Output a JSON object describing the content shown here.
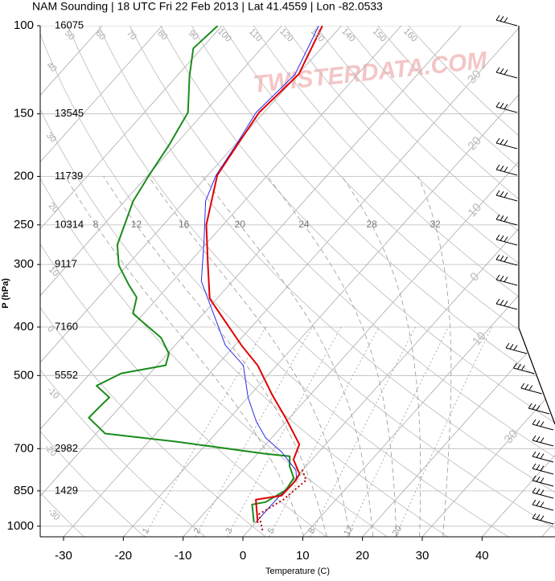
{
  "chart_data": {
    "type": "skewt",
    "title": "NAM Sounding | 18 UTC Fri 22 Feb 2013 | Lat 41.4559 | Lon -82.0533",
    "xlabel": "Temperature (C)",
    "ylabel": "P (hPa)",
    "watermark": "TWISTERDATA.COM",
    "xlim": [
      -33.9,
      52.2
    ],
    "xticks": [
      -30,
      -20,
      -10,
      0,
      10,
      20,
      30,
      40
    ],
    "ylim": [
      1050,
      100
    ],
    "ylog": true,
    "yticks": [
      100,
      150,
      200,
      250,
      300,
      400,
      500,
      700,
      850,
      1000
    ],
    "height_labels": [
      "16075",
      "13545",
      "11739",
      "10314",
      "9117",
      "7160",
      "5552",
      "2982",
      "1429",
      null
    ],
    "grid": true,
    "isotherms": [
      -100,
      -90,
      -80,
      -70,
      -60,
      -50,
      -40,
      -30,
      -20,
      -10,
      0,
      10,
      20,
      30,
      40,
      50
    ],
    "isotherm_labels": [
      {
        "value": -30,
        "label": "30"
      },
      {
        "value": -20,
        "label": "20"
      },
      {
        "value": -10,
        "label": "10"
      },
      {
        "value": 0,
        "label": "0"
      },
      {
        "value": 10,
        "label": "10"
      },
      {
        "value": 30,
        "label": "30"
      }
    ],
    "dry_adiabats": [
      -30,
      -20,
      -10,
      0,
      10,
      20,
      30,
      40,
      50,
      60,
      70,
      80,
      90,
      100,
      110,
      120,
      130,
      140,
      150,
      160
    ],
    "moist_adiabats": [
      8,
      12,
      16,
      20,
      24,
      28,
      32
    ],
    "mixing_ratios": [
      1,
      2,
      3,
      5,
      8,
      12,
      20
    ],
    "series": [
      {
        "color": "#1a8c1a",
        "width": 2,
        "pressure": [
          983,
          905,
          895,
          847,
          801,
          758,
          725,
          717,
          678,
          653,
          607,
          574,
          553,
          524,
          495,
          477,
          452,
          420,
          376,
          349,
          330,
          301,
          274,
          224,
          199,
          173,
          149,
          126,
          111,
          100
        ],
        "temperature": [
          -0.3,
          -3.3,
          -1.4,
          0.2,
          -0.3,
          -2.8,
          -4.2,
          -8.6,
          -25.2,
          -38.5,
          -43.6,
          -43.4,
          -43.2,
          -47.1,
          -44.8,
          -38.6,
          -39.8,
          -43.5,
          -51.8,
          -53.6,
          -56.7,
          -61.4,
          -64.7,
          -68.6,
          -69.8,
          -71.0,
          -72.7,
          -77.9,
          -81.4,
          -80.7
        ]
      },
      {
        "color": "#2a2ae8",
        "width": 1,
        "pressure": [
          983,
          879,
          809,
          773,
          711,
          666,
          618,
          553,
          477,
          435,
          324,
          269,
          224,
          199,
          173,
          149,
          125,
          100
        ],
        "temperature": [
          0.0,
          0.0,
          0.5,
          -1.1,
          -6.2,
          -11.0,
          -15.0,
          -20.0,
          -25.6,
          -31.6,
          -45.2,
          -50.8,
          -56.5,
          -58.6,
          -59.8,
          -61.3,
          -60.5,
          -63.8
        ]
      },
      {
        "color": "#e00000",
        "width": 2,
        "pressure": [
          985,
          885,
          869,
          816,
          787,
          736,
          686,
          607,
          547,
          477,
          435,
          351,
          301,
          250,
          199,
          173,
          149,
          125,
          100
        ],
        "temperature": [
          0.4,
          -3.4,
          0.3,
          0.4,
          0.1,
          -3.1,
          -4.4,
          -10.7,
          -16.3,
          -23.2,
          -28.9,
          -41.2,
          -46.5,
          -52.8,
          -58.4,
          -59.6,
          -60.8,
          -59.9,
          -63.2
        ]
      },
      {
        "color": "#b00000",
        "width": 2,
        "dash": "dotted",
        "pressure": [
          1019,
          946,
          885,
          809,
          765
        ],
        "temperature": [
          2.3,
          -0.7,
          1.2,
          2.1,
          -0.5
        ]
      }
    ]
  }
}
